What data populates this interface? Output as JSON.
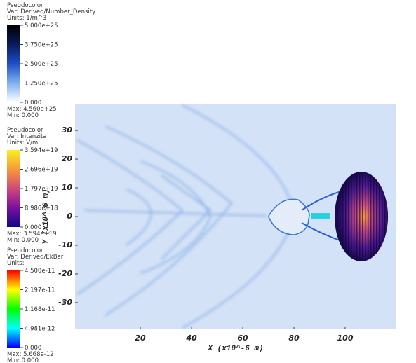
{
  "legends": [
    {
      "title": "Pseudocolor",
      "var": "Var: Derived/Number_Density",
      "units": "Units: 1/m^3",
      "ticks": [
        "5.000e+25",
        "3.750e+25",
        "2.500e+25",
        "1.250e+25",
        "0.000"
      ],
      "max": "Max: 4.560e+25",
      "min": "Min: 0.000",
      "colors": [
        "#000000",
        "#0a1a5c",
        "#1f4fc8",
        "#7fb0f0",
        "#ffffff"
      ]
    },
    {
      "title": "Pseudocolor",
      "var": "Var: Intenzita",
      "units": "Units: V/m",
      "ticks": [
        "3.594e+19",
        "2.696e+19",
        "1.797e+19",
        "8.986e+18",
        "0.000"
      ],
      "max": "Max: 3.594e+19",
      "min": "Min: 0.000",
      "colors": [
        "#f8f020",
        "#f89a3a",
        "#d0487a",
        "#7a10a0",
        "#0d0887"
      ]
    },
    {
      "title": "Pseudocolor",
      "var": "Var: Derived/EkBar",
      "units": "Units: J",
      "ticks": [
        "4.500e-11",
        "2.197e-11",
        "1.168e-11",
        "4.981e-12",
        "0.000"
      ],
      "max": "Max: 5.668e-12",
      "min": "Min: 0.000",
      "colors": [
        "#ff0000",
        "#ffff00",
        "#00ff00",
        "#00ffff",
        "#0000ff"
      ]
    }
  ],
  "chart_data": {
    "type": "pseudocolor",
    "xlabel": "X (x10^-6 m)",
    "ylabel": "Y (x10^-6 m)",
    "xlim": [
      -5.5,
      120
    ],
    "ylim": [
      -39.3,
      39.3
    ],
    "xticks": [
      20,
      40,
      60,
      80,
      100
    ],
    "yticks": [
      -30,
      -20,
      -10,
      0,
      10,
      20,
      30
    ]
  }
}
